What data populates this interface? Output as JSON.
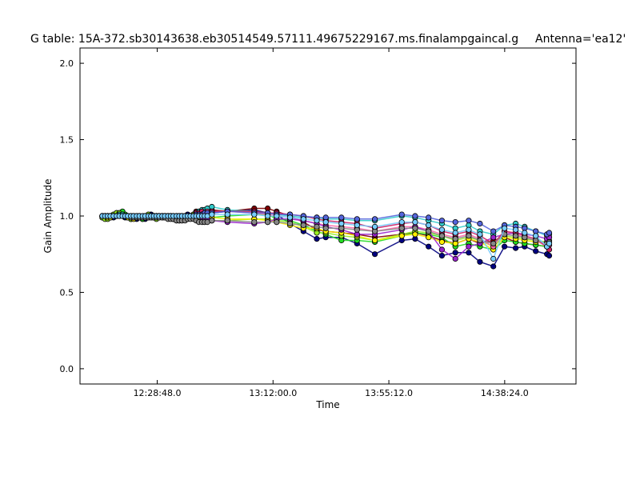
{
  "chart_data": {
    "type": "line",
    "title": "G table: 15A-372.sb30143638.eb30514549.57111.49675229167.ms.finalampgaincal.g",
    "subtitle": "Antenna='ea12'",
    "xlabel": "Time",
    "ylabel": "Gain Amplitude",
    "xlim_seconds": [
      43200,
      54300
    ],
    "ylim": [
      -0.1,
      2.1
    ],
    "x_ticks": [
      {
        "value": 44928,
        "label": "12:28:48.0"
      },
      {
        "value": 47520,
        "label": "13:12:00.0"
      },
      {
        "value": 50112,
        "label": "13:55:12.0"
      },
      {
        "value": 52704,
        "label": "14:38:24.0"
      }
    ],
    "y_ticks": [
      {
        "value": 0.0,
        "label": "0.0"
      },
      {
        "value": 0.5,
        "label": "0.5"
      },
      {
        "value": 1.0,
        "label": "1.0"
      },
      {
        "value": 1.5,
        "label": "1.5"
      },
      {
        "value": 2.0,
        "label": "2.0"
      }
    ],
    "grid": false,
    "x_seconds": [
      43700,
      43760,
      43820,
      43880,
      43950,
      44020,
      44080,
      44150,
      44210,
      44270,
      44340,
      44400,
      44470,
      44530,
      44600,
      44660,
      44730,
      44790,
      44850,
      44910,
      44970,
      45040,
      45100,
      45170,
      45230,
      45290,
      45360,
      45420,
      45480,
      45550,
      45610,
      45670,
      45740,
      45800,
      45860,
      45930,
      45990,
      46050,
      46150,
      46500,
      47100,
      47400,
      47600,
      47900,
      48200,
      48500,
      48700,
      49050,
      49400,
      49800,
      50400,
      50700,
      51000,
      51300,
      51600,
      51900,
      52150,
      52450,
      52700,
      52950,
      53150,
      53400,
      53650,
      53700
    ],
    "series": [
      {
        "color": "#000080",
        "values": [
          0.99,
          0.99,
          1.0,
          1.0,
          0.99,
          1.0,
          1.01,
          1.0,
          0.99,
          0.99,
          0.98,
          0.99,
          0.98,
          0.99,
          0.98,
          0.98,
          1.0,
          1.01,
          0.99,
          0.99,
          1.0,
          1.0,
          0.99,
          0.99,
          1.0,
          0.99,
          0.98,
          0.98,
          0.99,
          1.0,
          1.01,
          0.99,
          1.0,
          1.02,
          1.01,
          1.02,
          1.0,
          1.01,
          1.02,
          1.03,
          1.04,
          1.02,
          1.01,
          0.95,
          0.9,
          0.85,
          0.86,
          0.86,
          0.82,
          0.75,
          0.84,
          0.85,
          0.8,
          0.74,
          0.76,
          0.76,
          0.7,
          0.67,
          0.8,
          0.79,
          0.8,
          0.77,
          0.75,
          0.74
        ]
      },
      {
        "color": "#800000",
        "values": [
          1.0,
          1.0,
          0.99,
          1.0,
          1.0,
          1.01,
          1.0,
          1.0,
          1.0,
          0.99,
          0.99,
          0.99,
          0.99,
          0.99,
          0.99,
          1.0,
          0.99,
          1.0,
          1.0,
          1.0,
          0.99,
          0.99,
          1.0,
          1.0,
          1.0,
          1.0,
          0.99,
          0.99,
          1.0,
          1.0,
          1.0,
          1.0,
          1.01,
          1.03,
          1.0,
          1.01,
          1.0,
          1.03,
          1.04,
          1.03,
          1.05,
          1.05,
          1.03,
          1.0,
          0.96,
          0.91,
          0.9,
          0.89,
          0.88,
          0.86,
          0.88,
          0.89,
          0.87,
          0.84,
          0.82,
          0.85,
          0.82,
          0.84,
          0.86,
          0.83,
          0.82,
          0.81,
          0.8,
          0.82
        ]
      },
      {
        "color": "#22dd22",
        "values": [
          1.0,
          1.0,
          1.0,
          0.99,
          1.0,
          1.02,
          1.02,
          1.03,
          1.01,
          1.0,
          0.99,
          0.99,
          0.99,
          0.99,
          0.98,
          0.99,
          1.0,
          0.99,
          0.99,
          1.0,
          1.0,
          1.0,
          1.0,
          0.99,
          0.99,
          0.98,
          0.98,
          0.97,
          0.98,
          0.99,
          1.0,
          1.0,
          0.99,
          1.01,
          1.0,
          0.99,
          0.98,
          0.98,
          0.99,
          1.0,
          1.01,
          1.01,
          0.98,
          0.97,
          0.94,
          0.9,
          0.88,
          0.84,
          0.84,
          0.83,
          0.87,
          0.89,
          0.88,
          0.86,
          0.8,
          0.82,
          0.8,
          0.78,
          0.84,
          0.83,
          0.82,
          0.81,
          0.8,
          0.81
        ]
      },
      {
        "color": "#99ee22",
        "values": [
          0.99,
          0.98,
          0.98,
          0.99,
          1.01,
          1.02,
          1.02,
          1.01,
          1.0,
          0.99,
          0.98,
          0.99,
          0.99,
          0.99,
          0.99,
          0.99,
          1.01,
          1.0,
          0.99,
          0.98,
          0.99,
          1.0,
          1.0,
          1.0,
          0.99,
          0.98,
          0.97,
          0.97,
          0.97,
          0.98,
          0.99,
          1.0,
          1.01,
          1.0,
          0.99,
          0.99,
          0.98,
          0.98,
          0.97,
          0.97,
          0.98,
          0.98,
          0.97,
          0.96,
          0.93,
          0.89,
          0.89,
          0.87,
          0.86,
          0.84,
          0.88,
          0.9,
          0.89,
          0.87,
          0.84,
          0.86,
          0.84,
          0.8,
          0.87,
          0.86,
          0.85,
          0.84,
          0.83,
          0.84
        ]
      },
      {
        "color": "#ffee00",
        "values": [
          1.0,
          1.0,
          0.99,
          0.99,
          1.0,
          1.0,
          1.01,
          1.0,
          1.0,
          0.99,
          0.99,
          0.98,
          0.99,
          1.0,
          0.99,
          0.99,
          1.0,
          1.0,
          0.99,
          0.99,
          1.0,
          1.0,
          0.99,
          0.99,
          0.99,
          0.99,
          0.98,
          0.98,
          0.98,
          0.98,
          0.99,
          0.99,
          1.0,
          1.0,
          0.99,
          0.99,
          0.99,
          0.99,
          0.99,
          0.98,
          0.98,
          0.97,
          0.96,
          0.94,
          0.92,
          0.92,
          0.9,
          0.89,
          0.87,
          0.84,
          0.87,
          0.88,
          0.86,
          0.83,
          0.82,
          0.85,
          0.83,
          0.78,
          0.86,
          0.85,
          0.84,
          0.83,
          0.82,
          0.83
        ]
      },
      {
        "color": "#33cccc",
        "values": [
          1.0,
          1.0,
          1.0,
          1.0,
          1.0,
          1.0,
          1.01,
          1.01,
          1.0,
          1.0,
          0.99,
          0.99,
          0.99,
          0.99,
          0.99,
          0.99,
          1.0,
          1.0,
          1.0,
          1.0,
          1.0,
          1.0,
          1.0,
          1.0,
          0.99,
          0.99,
          0.99,
          0.99,
          0.99,
          0.99,
          1.0,
          1.0,
          1.0,
          1.02,
          1.03,
          1.04,
          1.04,
          1.05,
          1.06,
          1.04,
          1.03,
          1.02,
          1.01,
          1.0,
          0.99,
          0.99,
          0.98,
          0.98,
          0.97,
          0.97,
          1.0,
          0.99,
          0.97,
          0.95,
          0.92,
          0.94,
          0.9,
          0.88,
          0.94,
          0.95,
          0.93,
          0.9,
          0.87,
          0.88
        ]
      },
      {
        "color": "#ff66aa",
        "values": [
          1.0,
          1.0,
          1.0,
          1.0,
          1.0,
          1.0,
          1.0,
          1.0,
          1.0,
          1.0,
          0.99,
          0.99,
          0.99,
          0.99,
          0.99,
          0.99,
          1.0,
          1.0,
          1.0,
          1.0,
          1.0,
          1.0,
          1.0,
          1.0,
          1.0,
          0.99,
          0.99,
          0.99,
          0.99,
          0.99,
          1.0,
          1.0,
          1.0,
          1.01,
          1.01,
          1.02,
          1.02,
          1.03,
          1.03,
          1.03,
          1.02,
          1.01,
          1.0,
          0.99,
          0.97,
          0.95,
          0.94,
          0.93,
          0.92,
          0.9,
          0.93,
          0.93,
          0.91,
          0.88,
          0.86,
          0.88,
          0.85,
          0.8,
          0.9,
          0.88,
          0.86,
          0.84,
          0.8,
          0.81
        ]
      },
      {
        "color": "#9922cc",
        "values": [
          1.0,
          1.0,
          1.0,
          1.0,
          1.0,
          1.0,
          1.0,
          1.0,
          1.0,
          1.0,
          1.0,
          1.0,
          0.99,
          0.99,
          0.99,
          0.99,
          1.0,
          1.0,
          1.0,
          1.0,
          1.0,
          1.0,
          1.0,
          1.0,
          1.0,
          1.0,
          1.0,
          1.0,
          1.0,
          1.0,
          1.0,
          1.0,
          1.0,
          1.0,
          1.0,
          0.99,
          0.98,
          0.98,
          0.97,
          0.96,
          0.95,
          0.96,
          0.98,
          0.98,
          0.97,
          0.95,
          0.93,
          0.91,
          0.88,
          0.88,
          0.91,
          0.93,
          0.9,
          0.78,
          0.72,
          0.8,
          0.82,
          0.86,
          0.88,
          0.89,
          0.88,
          0.87,
          0.85,
          0.86
        ]
      },
      {
        "color": "#cc2266",
        "values": [
          1.0,
          1.0,
          1.0,
          1.0,
          1.0,
          1.0,
          1.0,
          1.0,
          1.0,
          1.0,
          1.0,
          1.0,
          1.0,
          1.0,
          0.99,
          0.99,
          1.0,
          1.0,
          1.0,
          1.0,
          1.0,
          1.0,
          1.0,
          1.0,
          1.0,
          1.0,
          1.0,
          1.0,
          1.0,
          1.0,
          1.0,
          1.0,
          1.0,
          1.02,
          1.02,
          1.03,
          1.02,
          1.02,
          1.03,
          1.03,
          1.03,
          1.02,
          1.02,
          1.01,
          1.0,
          0.98,
          0.97,
          0.96,
          0.95,
          0.92,
          0.95,
          0.96,
          0.94,
          0.9,
          0.88,
          0.9,
          0.87,
          0.82,
          0.9,
          0.89,
          0.87,
          0.85,
          0.8,
          0.78
        ]
      },
      {
        "color": "#5566dd",
        "values": [
          1.0,
          1.0,
          1.0,
          1.0,
          1.0,
          1.0,
          1.0,
          1.0,
          1.0,
          1.0,
          1.0,
          1.0,
          1.0,
          1.0,
          1.0,
          1.0,
          1.0,
          1.0,
          1.0,
          1.0,
          1.0,
          1.0,
          1.0,
          1.0,
          1.0,
          1.0,
          1.0,
          1.0,
          1.0,
          1.0,
          1.0,
          1.0,
          1.0,
          1.01,
          1.01,
          1.01,
          1.02,
          1.02,
          1.02,
          1.03,
          1.02,
          1.02,
          1.01,
          1.01,
          1.0,
          0.99,
          0.99,
          0.99,
          0.98,
          0.98,
          1.01,
          1.0,
          0.99,
          0.97,
          0.96,
          0.97,
          0.95,
          0.9,
          0.94,
          0.93,
          0.92,
          0.9,
          0.88,
          0.89
        ]
      },
      {
        "color": "#888888",
        "values": [
          1.0,
          1.0,
          1.0,
          1.0,
          1.0,
          1.0,
          1.0,
          1.0,
          1.0,
          1.0,
          0.99,
          0.99,
          0.99,
          0.99,
          0.99,
          0.99,
          0.99,
          0.99,
          0.99,
          0.99,
          0.99,
          0.99,
          0.99,
          0.98,
          0.98,
          0.98,
          0.97,
          0.97,
          0.97,
          0.97,
          0.98,
          0.98,
          0.98,
          0.97,
          0.96,
          0.96,
          0.96,
          0.96,
          0.97,
          0.97,
          0.96,
          0.96,
          0.96,
          0.95,
          0.94,
          0.93,
          0.92,
          0.92,
          0.91,
          0.9,
          0.92,
          0.92,
          0.9,
          0.87,
          0.85,
          0.87,
          0.84,
          0.82,
          0.88,
          0.87,
          0.86,
          0.84,
          0.82,
          0.83
        ]
      },
      {
        "color": "#77ccff",
        "values": [
          1.0,
          1.0,
          1.0,
          1.0,
          1.0,
          1.0,
          1.0,
          1.0,
          1.0,
          1.0,
          1.0,
          1.0,
          1.0,
          1.0,
          1.0,
          1.0,
          1.0,
          1.0,
          1.0,
          1.0,
          1.0,
          1.0,
          1.0,
          1.0,
          1.0,
          1.0,
          1.0,
          1.0,
          1.0,
          1.0,
          1.0,
          1.0,
          1.0,
          1.0,
          1.0,
          1.0,
          1.0,
          1.0,
          1.01,
          1.01,
          1.01,
          1.0,
          1.0,
          0.99,
          0.98,
          0.97,
          0.96,
          0.95,
          0.94,
          0.93,
          0.96,
          0.96,
          0.94,
          0.91,
          0.89,
          0.91,
          0.88,
          0.72,
          0.92,
          0.91,
          0.89,
          0.87,
          0.8,
          0.82
        ]
      }
    ]
  }
}
